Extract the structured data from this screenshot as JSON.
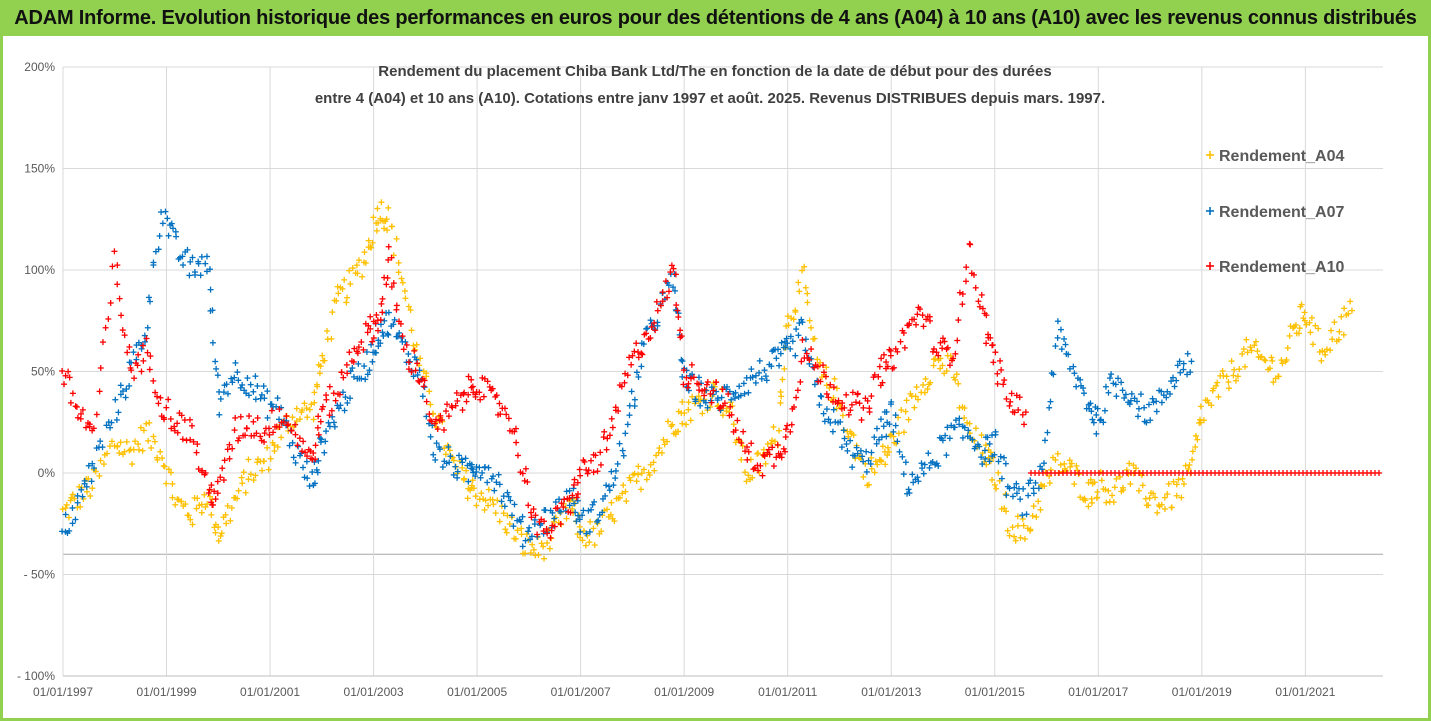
{
  "banner": {
    "title": "ADAM Informe. Evolution historique des performances en euros pour des détentions de 4 ans (A04) à 10 ans (A10) avec les revenus connus distribués"
  },
  "colors": {
    "banner_bg": "#92d050",
    "A04": "#ffc000",
    "A07": "#0070c0",
    "A10": "#ff0000",
    "gridline": "#d9d9d9"
  },
  "chart_data": {
    "type": "scatter",
    "title_line1": "Rendement du placement Chiba Bank Ltd/The en fonction de la date de début pour des durées",
    "title_line2": "entre 4 (A04) et 10 ans (A10). Cotations entre janv 1997 et août. 2025. Revenus DISTRIBUES depuis mars. 1997.",
    "xlabel": "",
    "ylabel": "",
    "ylim": [
      -1.0,
      2.0
    ],
    "xlim": [
      1997.0,
      2022.5
    ],
    "y_ticks": [
      {
        "value": 2.0,
        "label": "200%"
      },
      {
        "value": 1.5,
        "label": "150%"
      },
      {
        "value": 1.0,
        "label": "100%"
      },
      {
        "value": 0.5,
        "label": "50%"
      },
      {
        "value": 0.0,
        "label": "0%"
      },
      {
        "value": -0.5,
        "label": "- 50%"
      },
      {
        "value": -1.0,
        "label": "- 100%"
      }
    ],
    "x_ticks": [
      {
        "value": 1997,
        "label": "01/01/1997"
      },
      {
        "value": 1999,
        "label": "01/01/1999"
      },
      {
        "value": 2001,
        "label": "01/01/2001"
      },
      {
        "value": 2003,
        "label": "01/01/2003"
      },
      {
        "value": 2005,
        "label": "01/01/2005"
      },
      {
        "value": 2007,
        "label": "01/01/2007"
      },
      {
        "value": 2009,
        "label": "01/01/2009"
      },
      {
        "value": 2011,
        "label": "01/01/2011"
      },
      {
        "value": 2013,
        "label": "01/01/2013"
      },
      {
        "value": 2015,
        "label": "01/01/2015"
      },
      {
        "value": 2017,
        "label": "01/01/2017"
      },
      {
        "value": 2019,
        "label": "01/01/2019"
      },
      {
        "value": 2021,
        "label": "01/01/2021"
      }
    ],
    "grid": true,
    "legend_position": "right",
    "series": [
      {
        "name": "Rendement_A04",
        "color": "#ffc000",
        "x": [
          1997.0,
          1997.3,
          1997.6,
          1998.0,
          1998.3,
          1998.6,
          1998.9,
          1999.2,
          1999.5,
          1999.8,
          2000.0,
          2000.3,
          2000.6,
          2000.9,
          2001.2,
          2001.5,
          2001.8,
          2002.0,
          2002.3,
          2002.6,
          2002.9,
          2003.1,
          2003.3,
          2003.6,
          2003.9,
          2004.2,
          2004.5,
          2004.8,
          2005.0,
          2005.3,
          2005.6,
          2005.9,
          2006.2,
          2006.5,
          2006.8,
          2007.0,
          2007.3,
          2007.6,
          2007.9,
          2008.2,
          2008.5,
          2008.8,
          2009.0,
          2009.3,
          2009.6,
          2009.9,
          2010.2,
          2010.5,
          2010.8,
          2011.0,
          2011.3,
          2011.6,
          2011.9,
          2012.2,
          2012.5,
          2012.8,
          2013.0,
          2013.3,
          2013.6,
          2013.9,
          2014.2,
          2014.5,
          2014.8,
          2015.0,
          2015.3,
          2015.6,
          2015.9,
          2016.2,
          2016.5,
          2016.8,
          2017.0,
          2017.3,
          2017.6,
          2017.9,
          2018.2,
          2018.5,
          2018.8,
          2019.0,
          2019.3,
          2019.6,
          2019.9,
          2020.2,
          2020.5,
          2020.8,
          2021.0,
          2021.3,
          2021.6,
          2021.9
        ],
        "y": [
          -0.2,
          -0.12,
          -0.05,
          0.15,
          0.1,
          0.2,
          0.1,
          -0.15,
          -0.2,
          -0.1,
          -0.3,
          -0.15,
          0.0,
          0.05,
          0.2,
          0.3,
          0.3,
          0.55,
          0.85,
          0.95,
          1.1,
          1.3,
          1.25,
          0.9,
          0.5,
          0.3,
          0.05,
          -0.05,
          -0.1,
          -0.15,
          -0.25,
          -0.35,
          -0.38,
          -0.3,
          -0.15,
          -0.3,
          -0.3,
          -0.2,
          -0.1,
          0.0,
          0.1,
          0.25,
          0.3,
          0.35,
          0.4,
          0.3,
          0.0,
          0.05,
          0.2,
          0.75,
          0.95,
          0.5,
          0.4,
          0.2,
          0.0,
          0.05,
          0.15,
          0.3,
          0.45,
          0.55,
          0.5,
          0.2,
          0.1,
          0.0,
          -0.25,
          -0.3,
          -0.1,
          0.05,
          0.0,
          -0.1,
          -0.05,
          -0.1,
          0.0,
          -0.1,
          -0.15,
          -0.1,
          0.0,
          0.3,
          0.4,
          0.5,
          0.6,
          0.55,
          0.5,
          0.7,
          0.8,
          0.6,
          0.7,
          0.8
        ]
      },
      {
        "name": "Rendement_A07",
        "color": "#0070c0",
        "x": [
          1997.0,
          1997.3,
          1997.6,
          1998.0,
          1998.3,
          1998.6,
          1998.9,
          1999.2,
          1999.5,
          1999.8,
          2000.0,
          2000.3,
          2000.6,
          2000.9,
          2001.2,
          2001.5,
          2001.8,
          2002.0,
          2002.3,
          2002.6,
          2002.9,
          2003.1,
          2003.3,
          2003.6,
          2003.9,
          2004.2,
          2004.5,
          2004.8,
          2005.0,
          2005.3,
          2005.6,
          2005.9,
          2006.2,
          2006.5,
          2006.8,
          2007.0,
          2007.3,
          2007.6,
          2007.9,
          2008.2,
          2008.5,
          2008.8,
          2009.0,
          2009.3,
          2009.6,
          2009.9,
          2010.2,
          2010.5,
          2010.8,
          2011.0,
          2011.3,
          2011.6,
          2011.9,
          2012.2,
          2012.5,
          2012.8,
          2013.0,
          2013.3,
          2013.6,
          2013.9,
          2014.2,
          2014.5,
          2014.8,
          2015.0,
          2015.3,
          2015.6,
          2015.9,
          2016.2,
          2016.5,
          2016.8,
          2017.0,
          2017.3,
          2017.6,
          2017.9,
          2018.2,
          2018.5,
          2018.8
        ],
        "y": [
          -0.3,
          -0.15,
          0.05,
          0.3,
          0.5,
          0.7,
          1.3,
          1.1,
          1.0,
          1.05,
          0.35,
          0.5,
          0.45,
          0.35,
          0.3,
          0.1,
          -0.05,
          0.15,
          0.3,
          0.45,
          0.55,
          0.7,
          0.75,
          0.6,
          0.5,
          0.1,
          0.05,
          0.0,
          0.05,
          0.0,
          -0.15,
          -0.3,
          -0.25,
          -0.2,
          -0.1,
          -0.25,
          -0.2,
          -0.05,
          0.2,
          0.6,
          0.8,
          0.95,
          0.45,
          0.4,
          0.35,
          0.4,
          0.45,
          0.5,
          0.55,
          0.6,
          0.7,
          0.35,
          0.25,
          0.1,
          0.05,
          0.2,
          0.3,
          -0.05,
          0.0,
          0.1,
          0.2,
          0.2,
          0.1,
          0.15,
          -0.1,
          -0.15,
          0.0,
          0.7,
          0.5,
          0.35,
          0.25,
          0.45,
          0.4,
          0.3,
          0.35,
          0.5,
          0.55
        ]
      },
      {
        "name": "Rendement_A10",
        "color": "#ff0000",
        "x": [
          1997.0,
          1997.3,
          1997.6,
          1998.0,
          1998.3,
          1998.6,
          1998.9,
          1999.2,
          1999.5,
          1999.8,
          2000.0,
          2000.3,
          2000.6,
          2000.9,
          2001.2,
          2001.5,
          2001.8,
          2002.0,
          2002.3,
          2002.6,
          2002.9,
          2003.1,
          2003.3,
          2003.6,
          2003.9,
          2004.2,
          2004.5,
          2004.8,
          2005.0,
          2005.3,
          2005.6,
          2005.9,
          2006.2,
          2006.5,
          2006.8,
          2007.0,
          2007.3,
          2007.6,
          2007.9,
          2008.2,
          2008.5,
          2008.8,
          2009.0,
          2009.3,
          2009.6,
          2009.9,
          2010.2,
          2010.5,
          2010.8,
          2011.0,
          2011.3,
          2011.6,
          2011.9,
          2012.2,
          2012.5,
          2012.8,
          2013.0,
          2013.3,
          2013.6,
          2013.9,
          2014.2,
          2014.5,
          2014.8,
          2015.0,
          2015.3,
          2015.6
        ],
        "y": [
          0.5,
          0.3,
          0.2,
          1.05,
          0.5,
          0.6,
          0.35,
          0.25,
          0.2,
          -0.1,
          -0.1,
          0.2,
          0.25,
          0.2,
          0.3,
          0.2,
          0.05,
          0.3,
          0.4,
          0.6,
          0.7,
          0.75,
          1.05,
          0.6,
          0.5,
          0.2,
          0.3,
          0.4,
          0.45,
          0.35,
          0.3,
          0.0,
          -0.3,
          -0.25,
          -0.15,
          0.0,
          0.05,
          0.2,
          0.5,
          0.65,
          0.8,
          1.0,
          0.5,
          0.45,
          0.4,
          0.3,
          0.1,
          0.05,
          0.1,
          0.2,
          0.6,
          0.5,
          0.4,
          0.35,
          0.3,
          0.5,
          0.55,
          0.7,
          0.8,
          0.6,
          0.6,
          1.1,
          0.75,
          0.55,
          0.35,
          0.3
        ]
      },
      {
        "name": "",
        "color": "#ff0000",
        "x_range": [
          2015.7,
          2022.5
        ],
        "y": 0.0
      }
    ]
  }
}
